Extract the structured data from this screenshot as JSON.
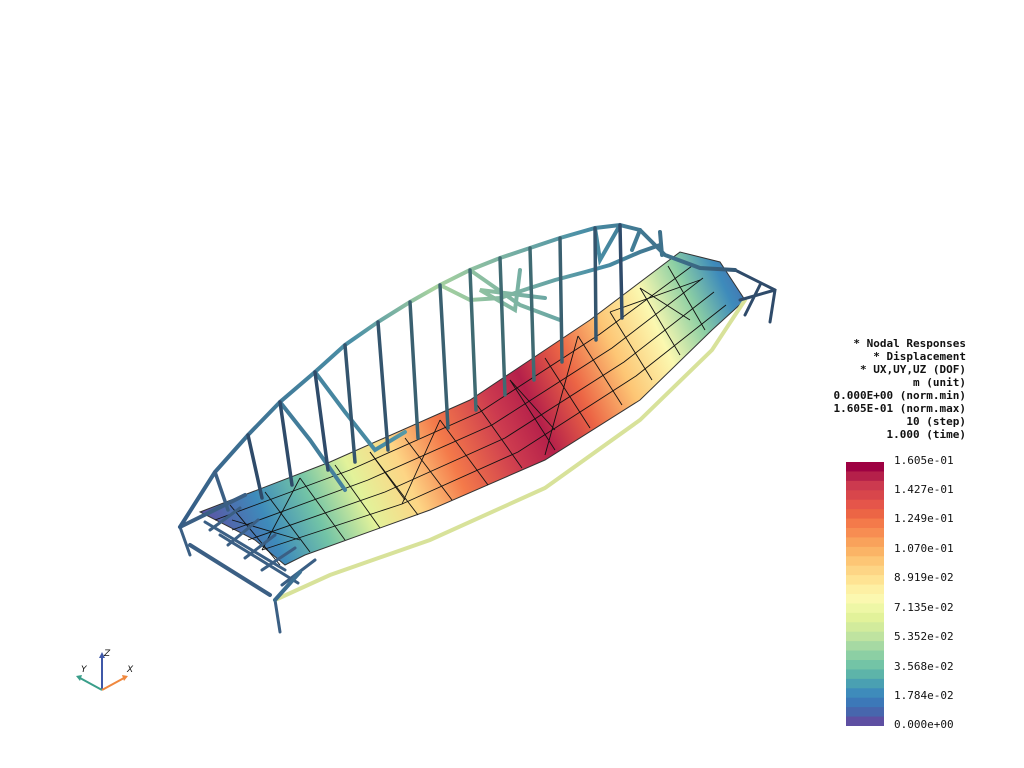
{
  "info_lines": [
    "* Nodal Responses",
    "* Displacement",
    "* UX,UY,UZ (DOF)",
    "m (unit)",
    "0.000E+00 (norm.min)",
    "1.605E-01 (norm.max)",
    "10 (step)",
    "1.000 (time)"
  ],
  "colorbar": {
    "ticks": [
      "1.605e-01",
      "1.427e-01",
      "1.249e-01",
      "1.070e-01",
      "8.919e-02",
      "7.135e-02",
      "5.352e-02",
      "3.568e-02",
      "1.784e-02",
      "0.000e+00"
    ],
    "colors_top_to_bottom": [
      "#9e0142",
      "#b5204a",
      "#cc3a4f",
      "#d8464b",
      "#e5554a",
      "#ec6545",
      "#f47a4a",
      "#f78d52",
      "#f9a25b",
      "#fbb466",
      "#fdc675",
      "#fdd585",
      "#fee393",
      "#fdf0a4",
      "#fbf8b0",
      "#eef7a6",
      "#e2f29a",
      "#d2eb9c",
      "#bfe3a0",
      "#a6d9a3",
      "#8ccfa4",
      "#73c4a6",
      "#5db4a9",
      "#4aa0b2",
      "#3e8bbb",
      "#3c78b8",
      "#4766ad",
      "#5e4fa2"
    ]
  },
  "axes": {
    "x": "X",
    "y": "Y",
    "z": "Z",
    "x_color": "#f0883e",
    "y_color": "#3a9e8a",
    "z_color": "#3f58a8"
  }
}
